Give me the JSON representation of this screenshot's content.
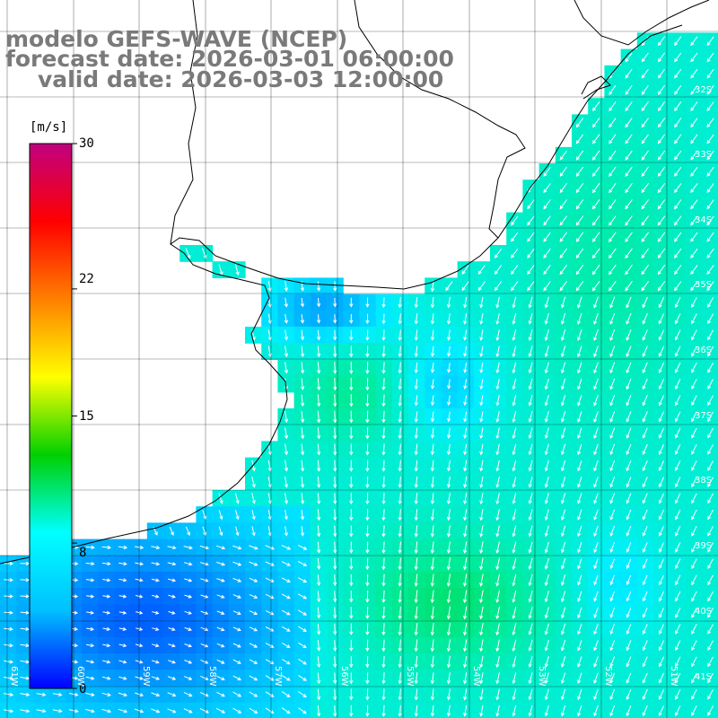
{
  "title": {
    "line1": "modelo GEFS-WAVE (NCEP)",
    "line2": "forecast date: 2026-03-01 06:00:00",
    "line3": "valid date: 2026-03-03 12:00:00"
  },
  "colorbar": {
    "unit": "[m/s]",
    "ticks": [
      "30",
      "22",
      "15",
      "8",
      "0"
    ],
    "tick_values": [
      30,
      22,
      15,
      8,
      0
    ],
    "min": 0,
    "max": 30,
    "colors": [
      "#0000ff",
      "#00c0ff",
      "#00ffff",
      "#00d000",
      "#ffff00",
      "#ff8000",
      "#ff0000",
      "#c00080"
    ]
  },
  "lat_labels": [
    "32S",
    "33S",
    "34S",
    "35S",
    "36S",
    "37S",
    "38S",
    "39S",
    "40S",
    "41S"
  ],
  "lon_labels": [
    "61W",
    "60W",
    "59W",
    "58W",
    "57W",
    "56W",
    "55W",
    "54W",
    "53W",
    "52W",
    "51W"
  ],
  "map_colors": {
    "land": "#ffffff",
    "grid": "#000000",
    "coast": "#000000",
    "arrows": "#ffffff"
  }
}
